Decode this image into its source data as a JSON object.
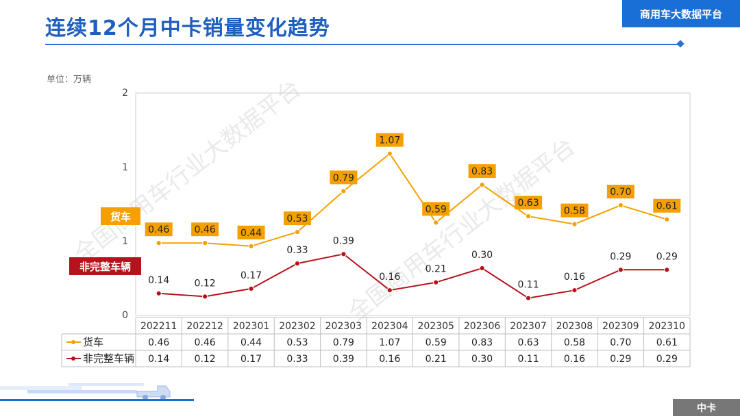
{
  "page": {
    "title": "连续12个月中卡销量变化趋势",
    "brand": "商用车大数据平台",
    "unit": "单位：万辆",
    "footer_badge": "中卡",
    "watermarks": [
      "全国商用车行业大数据平台",
      "全国商用车行业大数据平台"
    ]
  },
  "colors": {
    "accent": "#1a6fd6",
    "series1": "#f5a000",
    "series2": "#b5121b"
  },
  "chart_data": {
    "type": "line",
    "categories": [
      "202211",
      "202212",
      "202301",
      "202302",
      "202303",
      "202304",
      "202305",
      "202306",
      "202307",
      "202308",
      "202309",
      "202310"
    ],
    "series": [
      {
        "name": "货车",
        "values": [
          0.46,
          0.46,
          0.44,
          0.53,
          0.79,
          1.07,
          0.59,
          0.83,
          0.63,
          0.58,
          0.7,
          0.61
        ],
        "color": "#f5a000"
      },
      {
        "name": "非完整车辆",
        "values": [
          0.14,
          0.12,
          0.17,
          0.33,
          0.39,
          0.16,
          0.21,
          0.3,
          0.11,
          0.16,
          0.29,
          0.29
        ],
        "color": "#b5121b"
      }
    ],
    "series_labels": [
      "货车",
      "非完整车辆"
    ],
    "y_tick_labels": [
      "2",
      "1",
      "1",
      "0"
    ],
    "ylabel": "单位：万辆",
    "legend": "table-below"
  }
}
